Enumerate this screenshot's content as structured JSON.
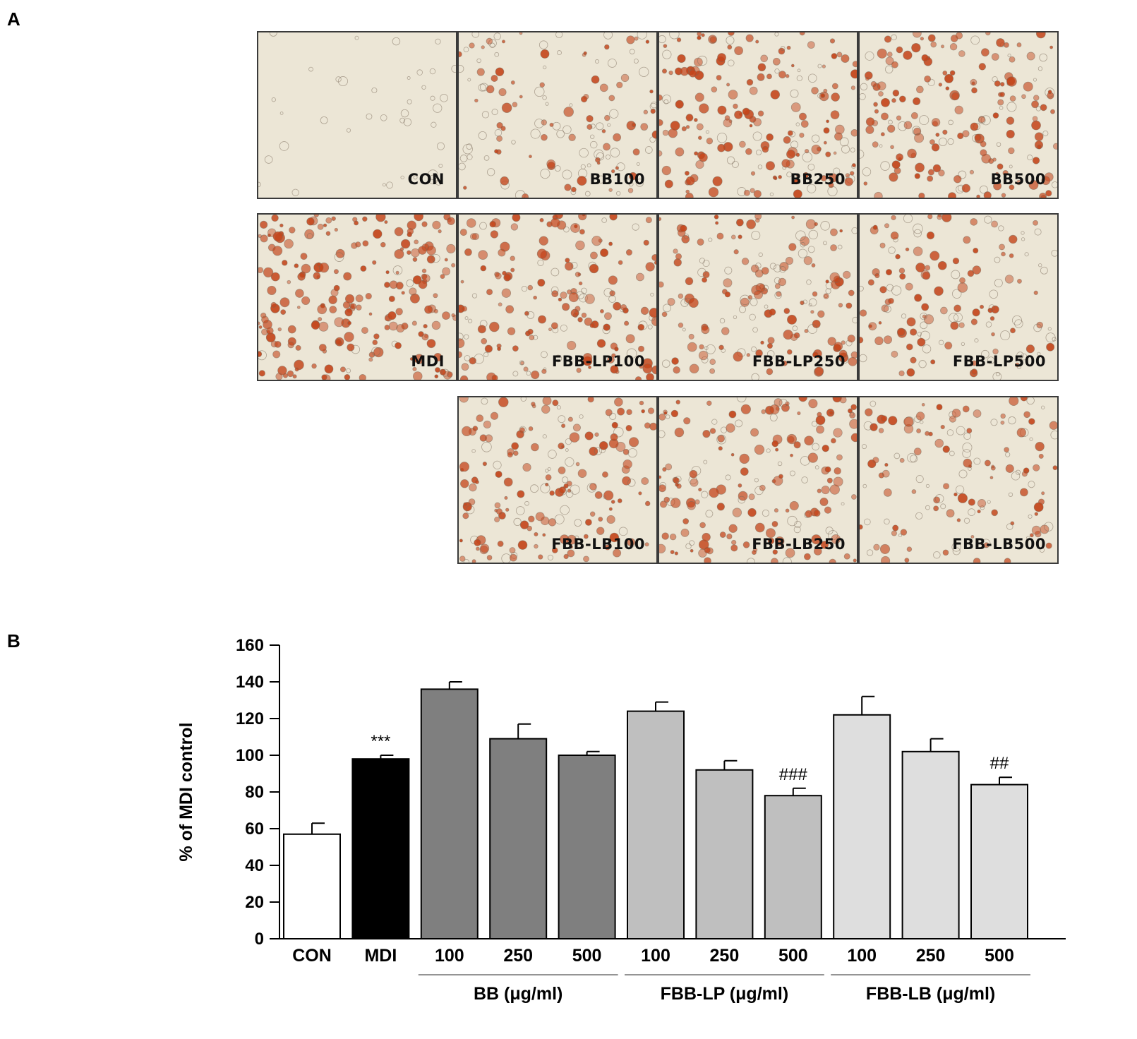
{
  "panel_a": {
    "letter": "A",
    "tiles": [
      {
        "label": "CON",
        "stain": 0.0
      },
      {
        "label": "BB100",
        "stain": 0.55
      },
      {
        "label": "BB250",
        "stain": 0.8
      },
      {
        "label": "BB500",
        "stain": 0.8
      },
      {
        "label": "MDI",
        "stain": 0.95
      },
      {
        "label": "FBB-LP100",
        "stain": 0.75
      },
      {
        "label": "FBB-LP250",
        "stain": 0.7
      },
      {
        "label": "FBB-LP500",
        "stain": 0.55
      },
      {
        "label": "FBB-LB100",
        "stain": 0.75
      },
      {
        "label": "FBB-LB250",
        "stain": 0.75
      },
      {
        "label": "FBB-LB500",
        "stain": 0.55
      }
    ],
    "colors": {
      "background": "#ece6d6",
      "stain": "#c4461c",
      "cell_outline": "#7a6a5a"
    }
  },
  "chart_data": {
    "letter": "B",
    "type": "bar",
    "ylabel": "% of MDI control",
    "ylim": [
      0,
      160
    ],
    "yticks": [
      "160",
      "140",
      "120",
      "100",
      "80",
      "60",
      "40",
      "20",
      "0"
    ],
    "categories": [
      "CON",
      "MDI",
      "100",
      "250",
      "500",
      "100",
      "250",
      "500",
      "100",
      "250",
      "500"
    ],
    "values": [
      57,
      98,
      136,
      109,
      100,
      124,
      92,
      78,
      122,
      102,
      84
    ],
    "errors": [
      6,
      2,
      4,
      8,
      2,
      5,
      5,
      4,
      10,
      7,
      4
    ],
    "annotations": [
      "",
      "***",
      "",
      "",
      "",
      "",
      "",
      "###",
      "",
      "",
      "##"
    ],
    "bar_colors": [
      "#ffffff",
      "#000000",
      "#7f7f7f",
      "#7f7f7f",
      "#7f7f7f",
      "#bfbfbf",
      "#bfbfbf",
      "#bfbfbf",
      "#dedede",
      "#dedede",
      "#dedede"
    ],
    "groups": [
      {
        "label": "BB (μg/ml)",
        "start": 2,
        "end": 4
      },
      {
        "label": "FBB-LP (μg/ml)",
        "start": 5,
        "end": 7
      },
      {
        "label": "FBB-LB (μg/ml)",
        "start": 8,
        "end": 10
      }
    ]
  }
}
